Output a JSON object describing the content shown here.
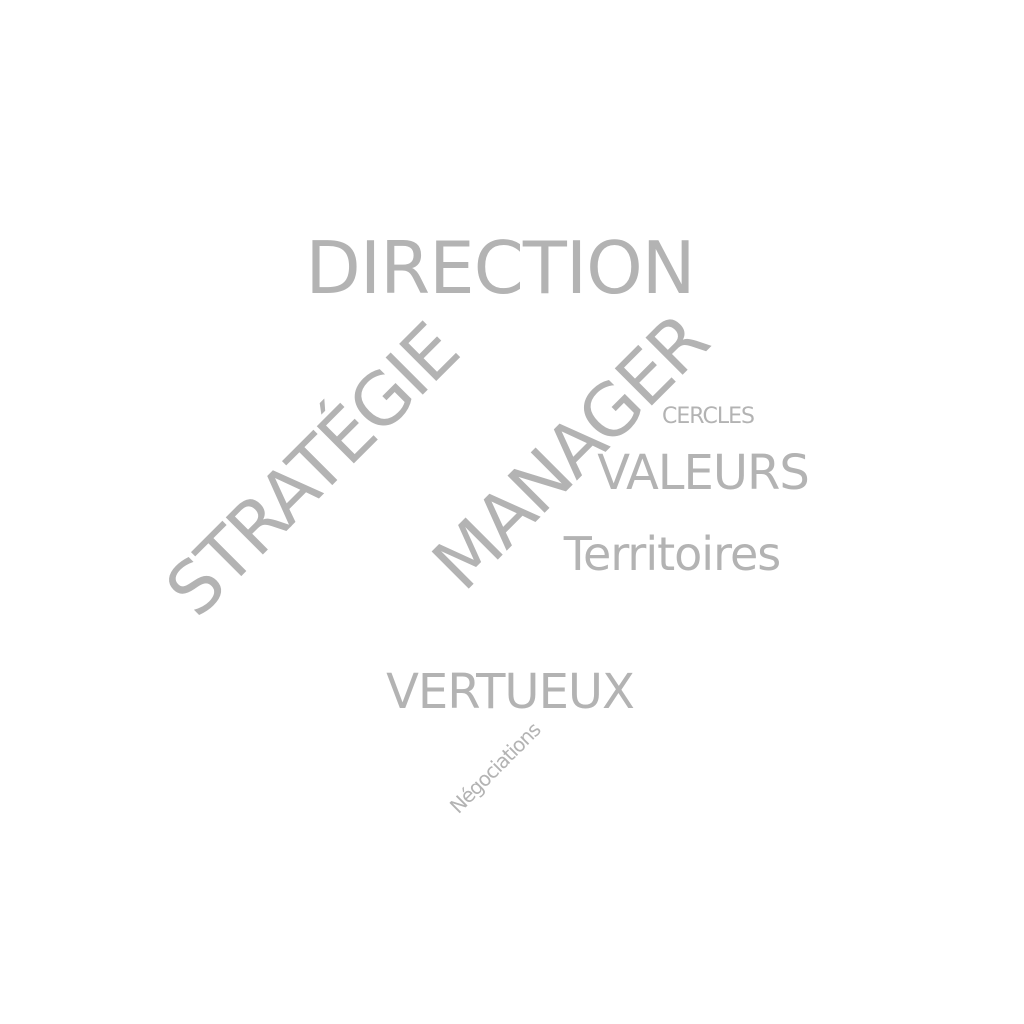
{
  "word_cloud": {
    "text_color": "#b3b3b3",
    "background": "#ffffff",
    "words": {
      "direction": "DIRECTION",
      "strategie": "STRATÉGIE",
      "manager": "MANAGER",
      "cercles": "CERCLES",
      "valeurs": "VALEURS",
      "territoires": "Territoires",
      "vertueux": "VERTUEUX",
      "negociations": "Négociations"
    }
  }
}
